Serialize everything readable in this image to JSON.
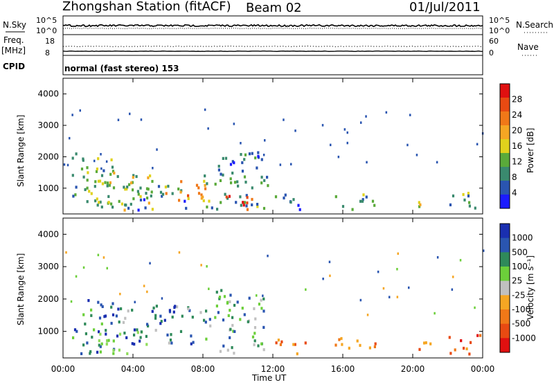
{
  "header": {
    "station": "Zhongshan Station (fitACF)",
    "beam": "Beam 02",
    "date": "01/Jul/2011"
  },
  "status_panels": {
    "nsky_label": "N.Sky",
    "nsky_ticks": [
      "10^5",
      "10^0"
    ],
    "nsearch_label": "N.Search",
    "nsearch_ticks": [
      "10^5",
      "10^0"
    ],
    "freq_label": "Freq.",
    "freq_unit": "[MHz]",
    "freq_ticks": [
      "18",
      "8"
    ],
    "nave_label": "Nave",
    "nave_ticks": [
      "60",
      "0"
    ],
    "cpid_label": "CPID",
    "cpid_text": "normal (fast stereo) 153"
  },
  "chart_data": [
    {
      "type": "heatmap",
      "name": "power",
      "ylabel": "Slant Range [km]",
      "xlabel": "Time UT",
      "ylim": [
        180,
        4500
      ],
      "xlim": [
        0,
        24
      ],
      "yticks": [
        "1000",
        "2000",
        "3000",
        "4000"
      ],
      "xticks": [
        "00:00",
        "04:00",
        "08:00",
        "12:00",
        "16:00",
        "20:00",
        "00:00"
      ],
      "colorbar": {
        "label": "Power [dB]",
        "ticks": [
          "4",
          "8",
          "12",
          "16",
          "20",
          "24",
          "28"
        ],
        "range": [
          0,
          32
        ],
        "colors": [
          "#1b1bff",
          "#2a55b0",
          "#3a8a6e",
          "#5aaa3a",
          "#e0d21c",
          "#f5a623",
          "#f07818",
          "#e84a12",
          "#e01010"
        ]
      },
      "echo_regions": [
        {
          "t": [
            0.5,
            3.0
          ],
          "r": [
            300,
            2100
          ],
          "level": 12
        },
        {
          "t": [
            1.8,
            5.2
          ],
          "r": [
            300,
            1500
          ],
          "level": 16
        },
        {
          "t": [
            3.0,
            7.0
          ],
          "r": [
            300,
            1100
          ],
          "level": 10
        },
        {
          "t": [
            5.5,
            8.2
          ],
          "r": [
            600,
            1300
          ],
          "level": 22
        },
        {
          "t": [
            8.0,
            11.8
          ],
          "r": [
            300,
            1400
          ],
          "level": 14
        },
        {
          "t": [
            9.0,
            10.8
          ],
          "r": [
            300,
            800
          ],
          "level": 26
        },
        {
          "t": [
            8.5,
            11.5
          ],
          "r": [
            1400,
            2300
          ],
          "level": 8
        },
        {
          "t": [
            11.5,
            13.5
          ],
          "r": [
            300,
            800
          ],
          "level": 10
        },
        {
          "t": [
            15.5,
            17.8
          ],
          "r": [
            300,
            800
          ],
          "level": 14
        },
        {
          "t": [
            20.0,
            21.0
          ],
          "r": [
            300,
            700
          ],
          "level": 18
        },
        {
          "t": [
            22.0,
            23.8
          ],
          "r": [
            300,
            900
          ],
          "level": 12
        },
        {
          "t": [
            22.6,
            23.0
          ],
          "r": [
            300,
            450
          ],
          "level": 30
        }
      ]
    },
    {
      "type": "heatmap",
      "name": "velocity",
      "ylabel": "Slant Range [km]",
      "xlabel": "Time UT",
      "ylim": [
        180,
        4500
      ],
      "xlim": [
        0,
        24
      ],
      "yticks": [
        "1000",
        "2000",
        "3000",
        "4000"
      ],
      "xticks": [
        "00:00",
        "04:00",
        "08:00",
        "12:00",
        "16:00",
        "20:00",
        "00:00"
      ],
      "colorbar": {
        "label": "Velocity [m s⁻¹]",
        "ticks": [
          "1000",
          "500",
          "100",
          "25",
          "-25",
          "-100",
          "-500",
          "-1000"
        ],
        "colors": [
          "#1a2fb0",
          "#2a55b0",
          "#2f8a5a",
          "#6ccf3a",
          "#c0c0c0",
          "#f5a623",
          "#f07818",
          "#e84a12",
          "#e01010"
        ]
      },
      "echo_regions": [
        {
          "t": [
            0.5,
            3.0
          ],
          "r": [
            300,
            2000
          ],
          "class": "blue-green"
        },
        {
          "t": [
            2.0,
            5.0
          ],
          "r": [
            300,
            1100
          ],
          "class": "light-green"
        },
        {
          "t": [
            3.0,
            8.0
          ],
          "r": [
            600,
            1800
          ],
          "class": "blue"
        },
        {
          "t": [
            8.0,
            11.5
          ],
          "r": [
            300,
            2300
          ],
          "class": "green"
        },
        {
          "t": [
            12.0,
            14.0
          ],
          "r": [
            300,
            800
          ],
          "class": "orange"
        },
        {
          "t": [
            15.5,
            18.0
          ],
          "r": [
            300,
            800
          ],
          "class": "orange"
        },
        {
          "t": [
            20.0,
            21.2
          ],
          "r": [
            300,
            700
          ],
          "class": "orange"
        },
        {
          "t": [
            22.0,
            24.0
          ],
          "r": [
            300,
            900
          ],
          "class": "orange-red"
        }
      ]
    }
  ]
}
